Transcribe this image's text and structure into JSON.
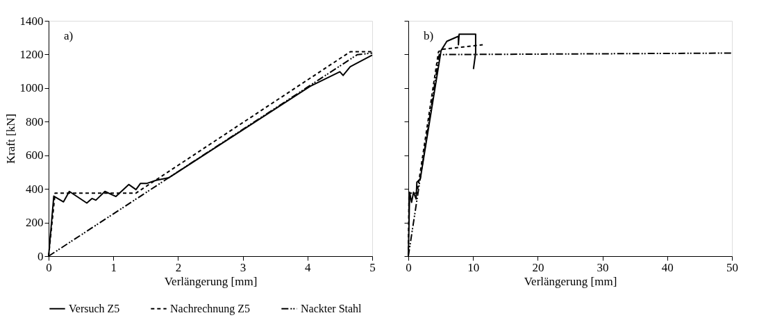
{
  "chart_data": [
    {
      "type": "line",
      "annotations": [
        "a)"
      ],
      "xlabel": "Verlängerung [mm]",
      "ylabel": "Kraft [kN]",
      "xlim": [
        0,
        5
      ],
      "xticks": [
        0,
        1,
        2,
        3,
        4,
        5
      ],
      "ylim": [
        0,
        1400
      ],
      "yticks": [
        0,
        200,
        400,
        600,
        800,
        1000,
        1200,
        1400
      ],
      "grid": false,
      "legend": "bottom",
      "marker": "none",
      "series": [
        {
          "name": "Versuch Z5",
          "color": "#000000",
          "line_style": "solid",
          "x": [
            0,
            0.08,
            0.23,
            0.32,
            0.59,
            0.67,
            0.73,
            0.87,
            1.04,
            1.24,
            1.35,
            1.42,
            1.52,
            1.66,
            1.86,
            4.04,
            4.5,
            4.55,
            4.66,
            5.0
          ],
          "values": [
            0,
            357,
            323,
            385,
            316,
            343,
            333,
            385,
            355,
            426,
            396,
            433,
            433,
            451,
            467,
            1010,
            1097,
            1075,
            1127,
            1196
          ]
        },
        {
          "name": "Nachrechnung Z5",
          "color": "#000000",
          "line_style": "dashed",
          "x": [
            0,
            0.1,
            1.35,
            4.66,
            5.0
          ],
          "values": [
            0,
            375,
            375,
            1216,
            1216
          ]
        },
        {
          "name": "Nackter Stahl",
          "color": "#000000",
          "line_style": "dashdotdot",
          "x": [
            0,
            4.77,
            5.0
          ],
          "values": [
            0,
            1199,
            1208
          ]
        }
      ]
    },
    {
      "type": "line",
      "annotations": [
        "b)"
      ],
      "xlabel": "Verlängerung [mm]",
      "xlim": [
        0,
        50
      ],
      "xticks": [
        0,
        10,
        20,
        30,
        40,
        50
      ],
      "ylim": [
        0,
        1400
      ],
      "yticks": [
        0,
        200,
        400,
        600,
        800,
        1000,
        1200,
        1400
      ],
      "tick_labels": "x",
      "grid": false,
      "legend": "bottom",
      "marker": "none",
      "series": [
        {
          "name": "Versuch Z5",
          "color": "#000000",
          "line_style": "solid",
          "x": [
            0,
            0.2,
            0.5,
            0.8,
            1.2,
            1.32,
            1.85,
            5.06,
            5.95,
            7.74,
            7.74,
            7.85,
            10.4,
            10.4,
            10.06
          ],
          "values": [
            0,
            380,
            320,
            380,
            340,
            440,
            460,
            1223,
            1278,
            1308,
            1258,
            1320,
            1320,
            1210,
            1113
          ]
        },
        {
          "name": "Nachrechnung Z5",
          "color": "#000000",
          "line_style": "dashed",
          "x": [
            0,
            0.1,
            1.35,
            4.66,
            5.2,
            11.5
          ],
          "values": [
            0,
            375,
            375,
            1216,
            1230,
            1258
          ]
        },
        {
          "name": "Nackter Stahl",
          "color": "#000000",
          "line_style": "dashdotdot",
          "x": [
            0,
            4.77,
            50
          ],
          "values": [
            0,
            1199,
            1208
          ]
        }
      ]
    }
  ]
}
